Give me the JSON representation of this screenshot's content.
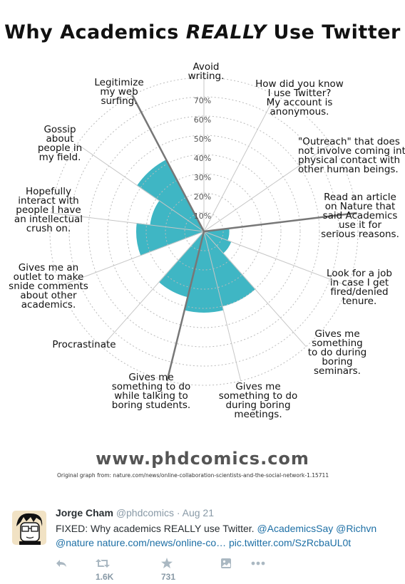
{
  "comic": {
    "title_parts": [
      "Why Academics ",
      "REALLY",
      " Use Twitter"
    ],
    "site": "www.phdcomics.com",
    "source": "Original graph from: nature.com/news/online-collaboration-scientists-and-the-social-network-1.15711"
  },
  "chart_data": {
    "type": "polar-area",
    "title": "Why Academics REALLY Use Twitter",
    "ticks": [
      "10%",
      "20%",
      "30%",
      "40%",
      "50%",
      "60%",
      "70%"
    ],
    "rmax": 80,
    "grid": true,
    "colors": {
      "fill": "#3fb6c4",
      "grid": "#bbbbbb",
      "divider": "#777777"
    },
    "categories": [
      "Avoid writing.",
      "How did you know I use Twitter? My account is anonymous.",
      "\"Outreach\" that does not involve coming into physical contact with other human beings.",
      "Read an article on Nature that said Academics use it for serious reasons.",
      "Look for a job in case I get fired/denied tenure.",
      "Gives me something to do during boring seminars.",
      "Gives me something to do during boring meetings.",
      "Gives me something to do while talking to boring students.",
      "Procrastinate",
      "Gives me an outlet to make snide comments about other academics.",
      "Hopefully interact with people I have an intellectual crush on.",
      "Gossip about people in my field.",
      "Legitimize my web surfing."
    ],
    "category_lines": [
      [
        "Avoid",
        "writing."
      ],
      [
        "How did you know",
        "I use Twitter?",
        "My account is",
        "anonymous."
      ],
      [
        "\"Outreach\" that does",
        "not involve coming into",
        "physical contact with",
        "other human beings."
      ],
      [
        "Read an article",
        "on Nature that",
        "said Academics",
        "use it for",
        "serious reasons."
      ],
      [
        "Look for a job",
        "in case I get",
        "fired/denied",
        "tenure."
      ],
      [
        "Gives me",
        "something",
        "to do during",
        "boring",
        "seminars."
      ],
      [
        "Gives me",
        "something to do",
        "during boring",
        "meetings."
      ],
      [
        "Gives me",
        "something to do",
        "while talking to",
        "boring students."
      ],
      [
        "Procrastinate"
      ],
      [
        "Gives me an",
        "outlet to make",
        "snide comments",
        "about other",
        "academics."
      ],
      [
        "Hopefully",
        "interact with",
        "people I have",
        "an intellectual",
        "crush on."
      ],
      [
        "Gossip",
        "about",
        "people in",
        "my field."
      ],
      [
        "Legitimize",
        "my web",
        "surfing."
      ]
    ],
    "values": [
      0,
      0,
      0,
      13,
      15,
      40,
      42,
      35,
      0,
      35,
      28,
      42,
      0
    ],
    "emphasized_categories": [
      "Read an article on Nature that said Academics use it for serious reasons.",
      "Legitimize my web surfing.",
      "Gives me something to do while talking to boring students."
    ]
  },
  "tweet": {
    "name": "Jorge Cham",
    "handle": "@phdcomics",
    "date": "· Aug 21",
    "text": "FIXED: Why academics REALLY use Twitter.",
    "mentions": "@AcademicsSay @Richvn @nature",
    "link1": "nature.com/news/online-co…",
    "link2": "pic.twitter.com/SzRcbaUL0t",
    "retweets": "1.6K",
    "favorites": "731"
  },
  "icons": [
    "reply-icon",
    "retweet-icon",
    "favorite-icon",
    "media-icon",
    "more-icon"
  ]
}
